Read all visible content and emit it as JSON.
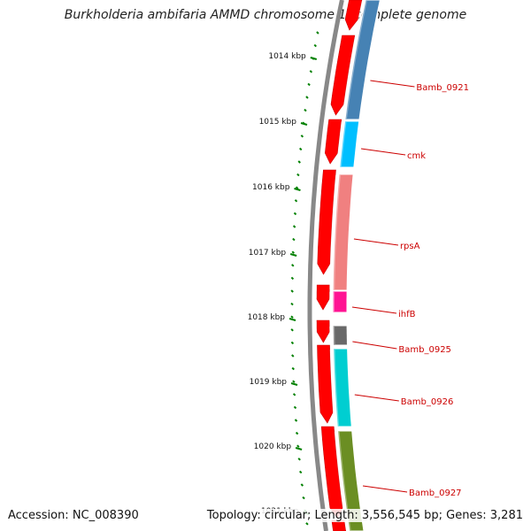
{
  "title": "Burkholderia ambifaria AMMD chromosome 1, complete genome",
  "footer": {
    "accession": "Accession: NC_008390",
    "topology": "Topology: circular; Length: 3,556,545 bp; Genes: 3,281"
  },
  "ruler": {
    "labels": [
      "1014 kbp",
      "1015 kbp",
      "1016 kbp",
      "1017 kbp",
      "1018 kbp",
      "1019 kbp",
      "1020 kbp",
      "1021 kbp"
    ]
  },
  "genes": [
    {
      "name": "Bamb_0921",
      "color": "#4682b4"
    },
    {
      "name": "cmk",
      "color": "#00bfff"
    },
    {
      "name": "rpsA",
      "color": "#f08080"
    },
    {
      "name": "ihfB",
      "color": "#ff1493"
    },
    {
      "name": "Bamb_0925",
      "color": "#696969"
    },
    {
      "name": "Bamb_0926",
      "color": "#00ced1"
    },
    {
      "name": "Bamb_0927",
      "color": "#6b8e23"
    }
  ],
  "colors": {
    "cds": "#ff0000",
    "backbone": "#888888",
    "ruler_tick": "#008000",
    "label": "#cc0000"
  }
}
